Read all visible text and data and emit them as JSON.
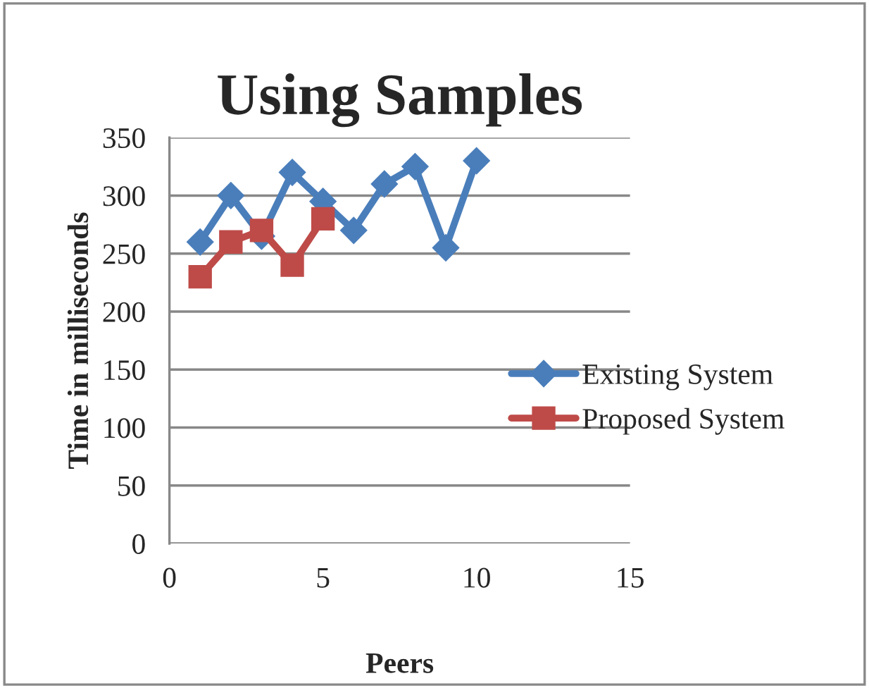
{
  "chart_data": {
    "type": "line",
    "title": "Using Samples",
    "xlabel": "Peers",
    "ylabel": "Time in milliseconds",
    "xlim": [
      0,
      15
    ],
    "xticks": [
      0,
      5,
      10,
      15
    ],
    "ylim": [
      0,
      350
    ],
    "yticks": [
      0,
      50,
      100,
      150,
      200,
      250,
      300,
      350
    ],
    "grid": "y",
    "legend": "right",
    "line_style": "solid",
    "series": [
      {
        "name": "Existing System",
        "color": "#4a7ebb",
        "marker": "diamond",
        "x": [
          1,
          2,
          3,
          4,
          5,
          6,
          7,
          8,
          9,
          10
        ],
        "values": [
          260,
          300,
          265,
          320,
          295,
          270,
          310,
          325,
          255,
          330
        ]
      },
      {
        "name": "Proposed System",
        "color": "#be4b48",
        "marker": "square",
        "x": [
          1,
          2,
          3,
          4,
          5
        ],
        "values": [
          230,
          260,
          270,
          240,
          280
        ]
      }
    ]
  }
}
